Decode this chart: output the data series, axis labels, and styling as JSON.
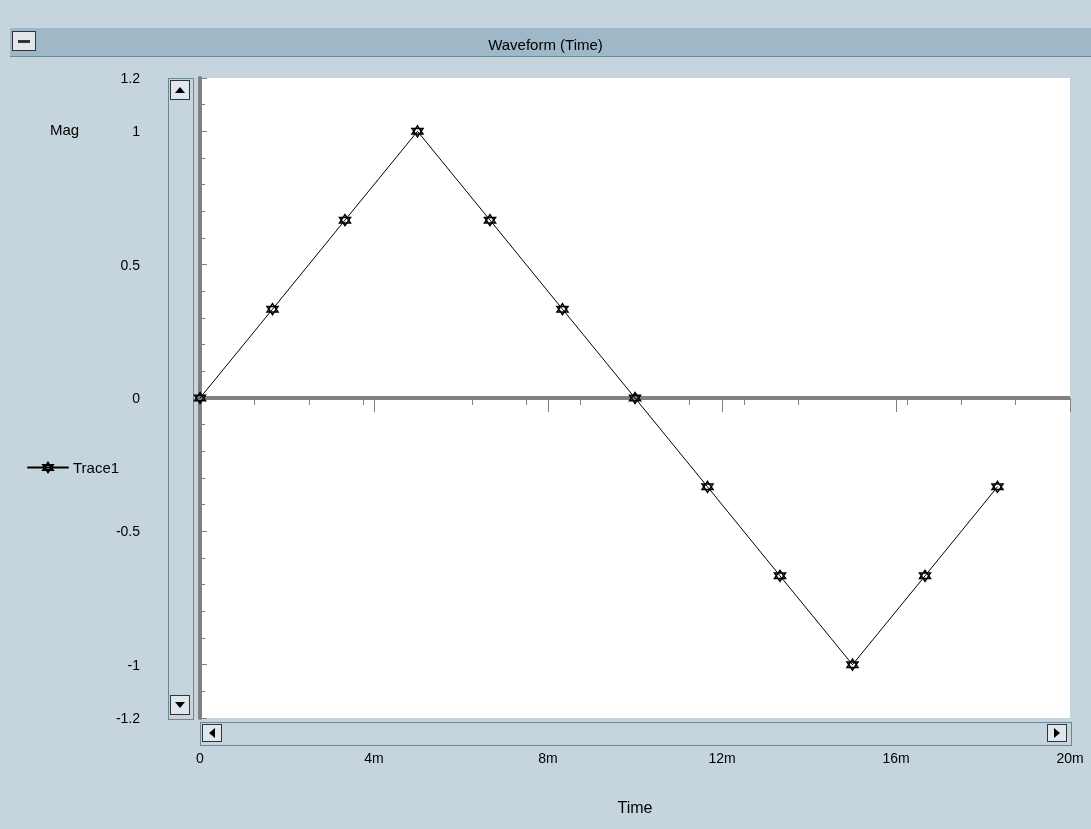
{
  "chart_data": {
    "type": "line",
    "title": "Waveform (Time)",
    "xlabel": "Time",
    "ylabel": "Mag",
    "x": [
      0,
      1.667,
      3.333,
      5,
      6.667,
      8.333,
      10,
      11.667,
      13.333,
      15,
      16.667,
      18.333
    ],
    "series": [
      {
        "name": "Trace1",
        "color": "#000000",
        "values": [
          0,
          0.333,
          0.667,
          1,
          0.667,
          0.333,
          0,
          -0.333,
          -0.667,
          -1,
          -0.667,
          -0.333
        ]
      }
    ],
    "xlim": [
      0,
      20
    ],
    "xticks": [
      0,
      {
        "value": 4,
        "label": "4m"
      },
      {
        "value": 8,
        "label": "8m"
      },
      {
        "value": 12,
        "label": "12m"
      },
      {
        "value": 16,
        "label": "16m"
      },
      {
        "value": 20,
        "label": "20m"
      }
    ],
    "ylim": [
      -1.2,
      1.2
    ],
    "yticks": [
      -1.2,
      -1,
      -0.5,
      0,
      0.5,
      1,
      1.2
    ],
    "ref_lines": [
      {
        "axis": "y",
        "value": 0,
        "color": "#808080"
      }
    ],
    "grid": false,
    "legend": "left",
    "marker": "star",
    "line_style": "solid"
  }
}
